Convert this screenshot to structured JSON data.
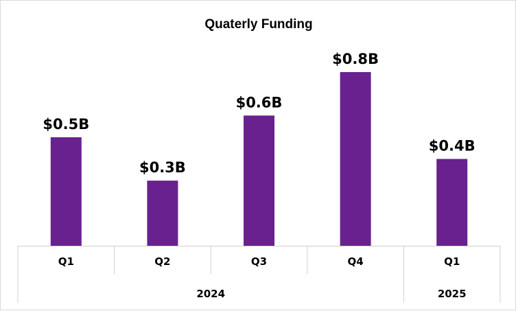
{
  "chart_data": {
    "type": "bar",
    "title": "Quaterly Funding",
    "categories": [
      "Q1",
      "Q2",
      "Q3",
      "Q4",
      "Q1"
    ],
    "groups": [
      {
        "label": "2024",
        "count": 4
      },
      {
        "label": "2025",
        "count": 1
      }
    ],
    "values": [
      0.5,
      0.3,
      0.6,
      0.8,
      0.4
    ],
    "data_labels": [
      "$0.5B",
      "$0.3B",
      "$0.6B",
      "$0.8B",
      "$0.4B"
    ],
    "unit": "$B",
    "ylim": [
      0,
      0.8
    ],
    "grid": false,
    "legend": "none",
    "bar_color": "#68218f"
  }
}
